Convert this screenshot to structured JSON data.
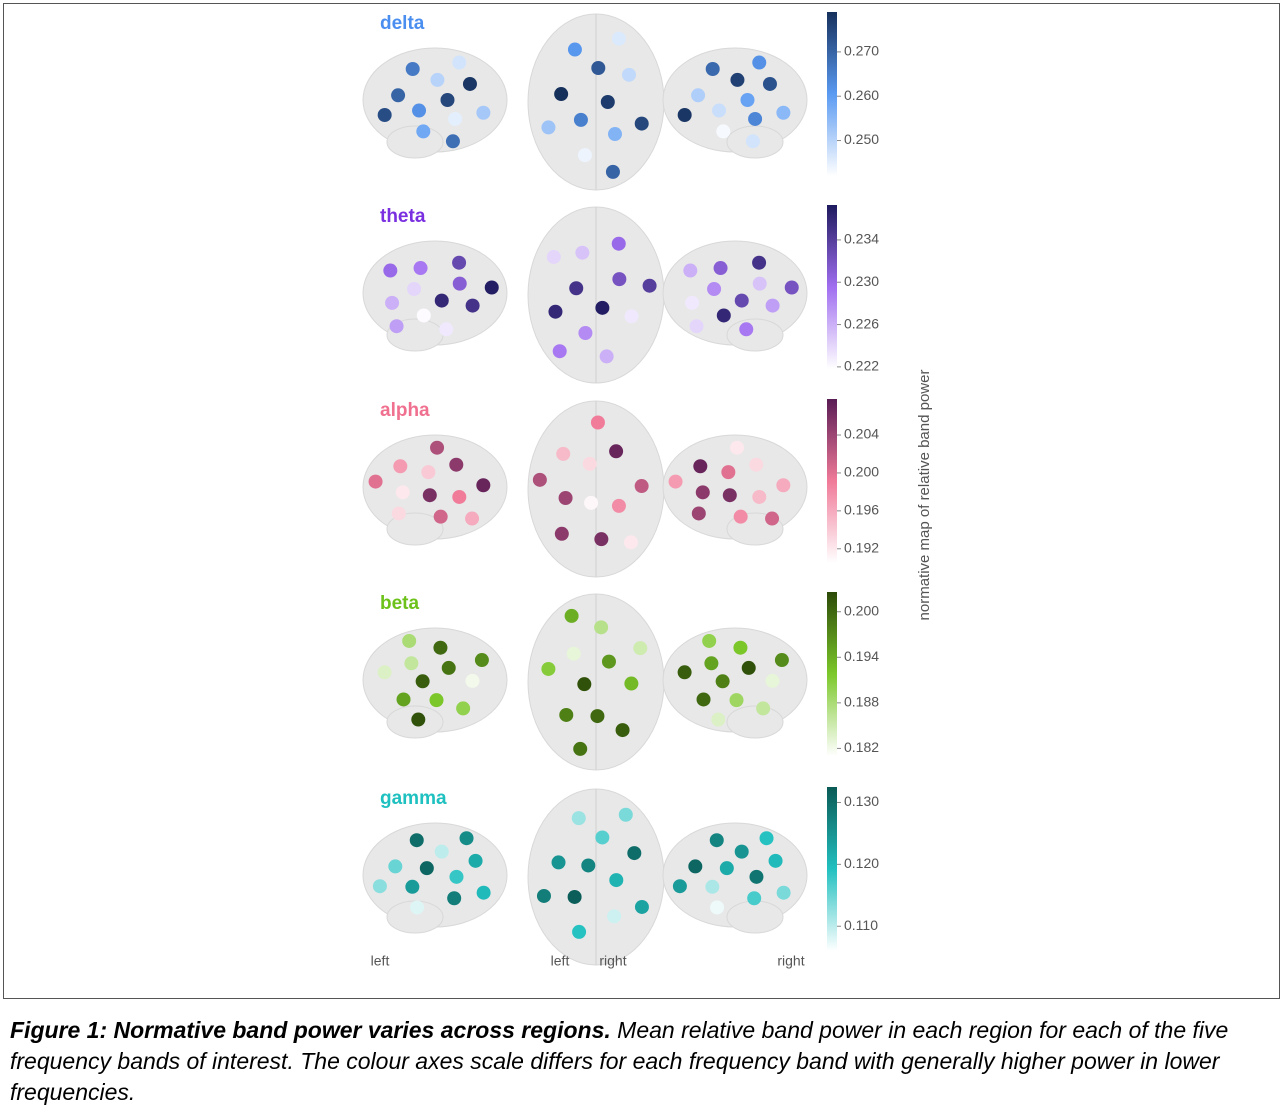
{
  "figure": {
    "panels": [
      {
        "band": "delta",
        "label_color": "#4a8ef0",
        "cmap": [
          "#ffffff",
          "#5a9af2",
          "#16305c"
        ],
        "clim": [
          0.242,
          0.279
        ],
        "ticks": [
          {
            "value": 0.27,
            "label": "0.270"
          },
          {
            "value": 0.26,
            "label": "0.260"
          },
          {
            "value": 0.25,
            "label": "0.250"
          }
        ],
        "views": {
          "left": [
            0.275,
            0.262,
            0.25,
            0.245,
            0.27,
            0.278,
            0.258,
            0.266,
            0.252,
            0.274,
            0.247,
            0.268
          ],
          "top": [
            0.277,
            0.265,
            0.272,
            0.256,
            0.279,
            0.249,
            0.244,
            0.261,
            0.275,
            0.253,
            0.246,
            0.27
          ],
          "right": [
            0.259,
            0.248,
            0.276,
            0.264,
            0.251,
            0.273,
            0.243,
            0.269,
            0.255,
            0.278,
            0.262,
            0.247
          ]
        }
      },
      {
        "band": "theta",
        "label_color": "#7a2fe0",
        "cmap": [
          "#ffffff",
          "#a06ef0",
          "#1e1a5e"
        ],
        "clim": [
          0.2218,
          0.2373
        ],
        "ticks": [
          0.234,
          {
            "value": 0.23,
            "label": "0.230"
          },
          0.226,
          0.222
        ],
        "views": {
          "left": [
            0.236,
            0.224,
            0.231,
            0.222,
            0.229,
            0.235,
            0.226,
            0.233,
            0.223,
            0.23,
            0.237,
            0.227
          ],
          "top": [
            0.237,
            0.235,
            0.232,
            0.228,
            0.225,
            0.223,
            0.236,
            0.23,
            0.226,
            0.224,
            0.234,
            0.229
          ],
          "right": [
            0.233,
            0.228,
            0.225,
            0.236,
            0.231,
            0.227,
            0.223,
            0.235,
            0.229,
            0.226,
            0.232,
            0.224
          ]
        }
      },
      {
        "band": "alpha",
        "label_color": "#f07090",
        "cmap": [
          "#ffffff",
          "#f07a98",
          "#5a1c55"
        ],
        "clim": [
          0.1905,
          0.2078
        ],
        "ticks": [
          0.204,
          {
            "value": 0.2,
            "label": "0.200"
          },
          0.196,
          0.192
        ],
        "views": {
          "left": [
            0.206,
            0.194,
            0.199,
            0.192,
            0.205,
            0.201,
            0.197,
            0.207,
            0.193,
            0.203,
            0.196,
            0.2
          ],
          "top": [
            0.191,
            0.193,
            0.198,
            0.204,
            0.207,
            0.206,
            0.195,
            0.202,
            0.205,
            0.199,
            0.192,
            0.203
          ],
          "right": [
            0.206,
            0.2,
            0.195,
            0.205,
            0.193,
            0.198,
            0.207,
            0.196,
            0.204,
            0.192,
            0.201,
            0.197
          ]
        }
      },
      {
        "band": "beta",
        "label_color": "#6cc21a",
        "cmap": [
          "#ffffff",
          "#7cc82a",
          "#2c4a08"
        ],
        "clim": [
          0.181,
          0.2026
        ],
        "ticks": [
          {
            "value": 0.2,
            "label": "0.200"
          },
          0.194,
          0.188,
          0.182
        ],
        "views": {
          "left": [
            0.201,
            0.199,
            0.192,
            0.186,
            0.182,
            0.195,
            0.2,
            0.19,
            0.184,
            0.197,
            0.202,
            0.188
          ],
          "top": [
            0.202,
            0.196,
            0.2,
            0.183,
            0.193,
            0.198,
            0.187,
            0.201,
            0.191,
            0.185,
            0.199,
            0.194
          ],
          "right": [
            0.198,
            0.202,
            0.189,
            0.195,
            0.183,
            0.2,
            0.192,
            0.186,
            0.201,
            0.197,
            0.184,
            0.19
          ]
        }
      },
      {
        "band": "gamma",
        "label_color": "#1ec0c0",
        "cmap": [
          "#ffffff",
          "#22c0c0",
          "#0a5a55"
        ],
        "clim": [
          0.106,
          0.1325
        ],
        "ticks": [
          {
            "value": 0.13,
            "label": "0.130"
          },
          {
            "value": 0.12,
            "label": "0.120"
          },
          {
            "value": 0.11,
            "label": "0.110"
          }
        ],
        "views": {
          "left": [
            0.131,
            0.118,
            0.124,
            0.11,
            0.128,
            0.115,
            0.122,
            0.108,
            0.13,
            0.12,
            0.113,
            0.126
          ],
          "top": [
            0.127,
            0.121,
            0.132,
            0.116,
            0.109,
            0.125,
            0.13,
            0.119,
            0.112,
            0.123,
            0.128,
            0.114
          ],
          "right": [
            0.122,
            0.129,
            0.111,
            0.125,
            0.117,
            0.131,
            0.12,
            0.107,
            0.127,
            0.114,
            0.124,
            0.119
          ]
        }
      }
    ],
    "colorbar_label": "normative map of relative band power",
    "view_labels": [
      "left",
      "left",
      "right",
      "right"
    ],
    "caption": {
      "title": "Figure 1: Normative band power varies across regions.",
      "text": "Mean relative band power in each region for each of the five frequency bands of interest. The colour axes scale differs for each frequency band with generally higher power in lower frequencies."
    }
  }
}
